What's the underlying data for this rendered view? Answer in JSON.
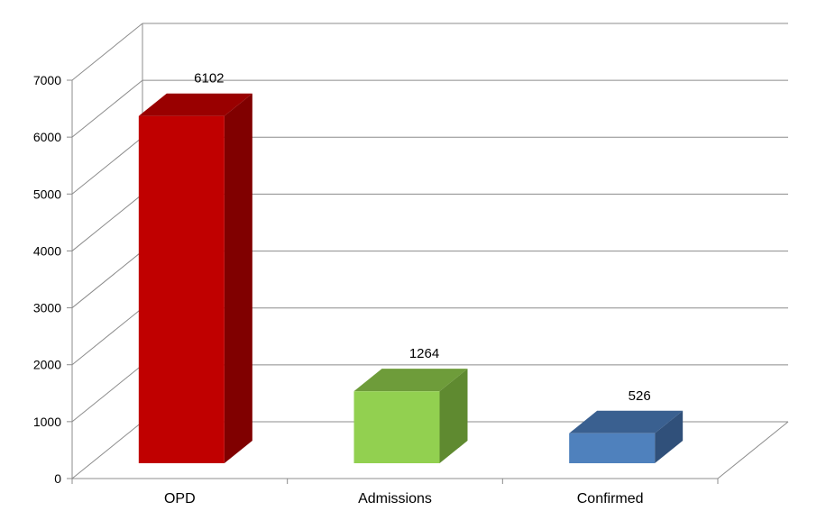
{
  "chart_data": {
    "type": "bar",
    "style": "3d-column",
    "categories": [
      "OPD",
      "Admissions",
      "Confirmed"
    ],
    "values": [
      6102,
      1264,
      526
    ],
    "data_labels": [
      "6102",
      "1264",
      "526"
    ],
    "ylim": [
      0,
      7000
    ],
    "y_ticks": [
      "0",
      "1000",
      "2000",
      "3000",
      "4000",
      "5000",
      "6000",
      "7000"
    ],
    "grid": true,
    "legend": "none",
    "colors": {
      "OPD": {
        "front": "#c00000",
        "side": "#800000",
        "top": "#990000"
      },
      "Admissions": {
        "front": "#92d050",
        "side": "#5f8a30",
        "top": "#6e9c3a"
      },
      "Confirmed": {
        "front": "#4f81bd",
        "side": "#30507a",
        "top": "#3a6090"
      }
    },
    "gridline_color": "#8c8c8c"
  }
}
